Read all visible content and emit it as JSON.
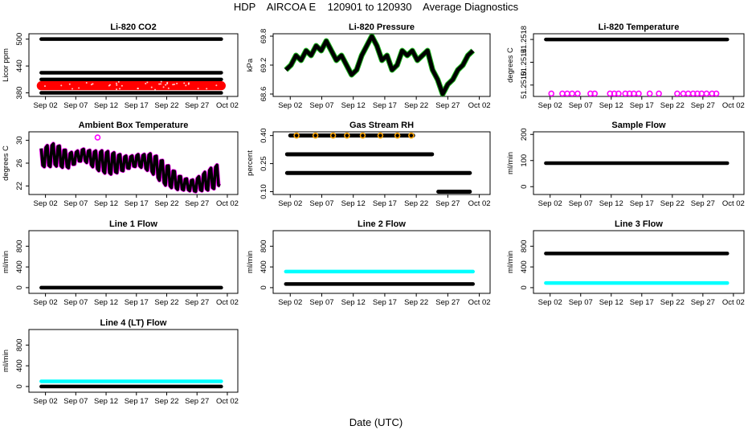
{
  "page": {
    "title": "HDP    AIRCOA E    120901 to 120930    Average Diagnostics",
    "x_label": "Date (UTC)"
  },
  "colors": {
    "black": "#000000",
    "red": "#ff0000",
    "green": "#22bb22",
    "magenta": "#ff00ff",
    "orange": "#ffa500",
    "cyan": "#00ffff",
    "blue": "#0000ff"
  },
  "chart_data": [
    {
      "type": "scatter",
      "title": "Li-820 CO2",
      "ylabel": "Licor ppm",
      "ylim": [
        372,
        512
      ],
      "yticks": [
        "380",
        "440",
        "500"
      ],
      "ytick_values": [
        380,
        440,
        500
      ],
      "xlabels": [
        "Sep 02",
        "Sep 07",
        "Sep 12",
        "Sep 17",
        "Sep 22",
        "Sep 27",
        "Oct 02"
      ],
      "series": [
        {
          "name": "level-500",
          "color": "black",
          "kind": "flat",
          "values": [
            500
          ],
          "spread": 1.2
        },
        {
          "name": "level-425",
          "color": "black",
          "kind": "flat",
          "values": [
            425
          ],
          "spread": 1.0
        },
        {
          "name": "level-410",
          "color": "black",
          "kind": "flat",
          "values": [
            410
          ],
          "spread": 1.0
        },
        {
          "name": "ambient",
          "color": "red",
          "kind": "band",
          "values": [
            396
          ],
          "spread": 10
        },
        {
          "name": "level-380",
          "color": "black",
          "kind": "flat",
          "values": [
            380
          ],
          "spread": 1.2
        }
      ]
    },
    {
      "type": "scatter",
      "title": "Li-820 Pressure",
      "ylabel": "kPa",
      "ylim": [
        68.55,
        69.85
      ],
      "yticks": [
        "68.6",
        "69.2",
        "69.8"
      ],
      "ytick_values": [
        68.6,
        69.2,
        69.8
      ],
      "xlabels": [
        "Sep 02",
        "Sep 07",
        "Sep 12",
        "Sep 17",
        "Sep 22",
        "Sep 27",
        "Oct 02"
      ],
      "series": [
        {
          "name": "pressure",
          "color": "black",
          "kind": "trace",
          "values": [
            69.1,
            69.2,
            69.4,
            69.3,
            69.5,
            69.4,
            69.6,
            69.5,
            69.7,
            69.5,
            69.3,
            69.4,
            69.2,
            69.0,
            69.1,
            69.4,
            69.6,
            69.8,
            69.6,
            69.3,
            69.4,
            69.1,
            69.2,
            69.5,
            69.4,
            69.5,
            69.3,
            69.4,
            69.5,
            69.1,
            68.9,
            68.6,
            68.8,
            68.9,
            69.1,
            69.2,
            69.4,
            69.5
          ],
          "spread": 0.06
        }
      ]
    },
    {
      "type": "scatter",
      "title": "Li-820 Temperature",
      "ylabel": "degrees C",
      "ylim": [
        51.2508,
        51.2519
      ],
      "yticks": [
        "51.2510",
        "51.2514",
        "51.2518"
      ],
      "ytick_values": [
        51.251,
        51.2514,
        51.2518
      ],
      "xlabels": [
        "Sep 02",
        "Sep 07",
        "Sep 12",
        "Sep 17",
        "Sep 22",
        "Sep 27",
        "Oct 02"
      ],
      "series": [
        {
          "name": "temperature",
          "color": "black",
          "kind": "flat",
          "values": [
            51.2518
          ],
          "spread": 1e-05
        },
        {
          "name": "low-readings",
          "color": "magenta",
          "kind": "points",
          "values": [
            51.25085
          ],
          "days": [
            1.2,
            3.0,
            3.8,
            4.6,
            5.5,
            7.6,
            8.3,
            10.8,
            11.5,
            12.2,
            13.3,
            14.0,
            14.7,
            15.5,
            17.3,
            18.8,
            21.8,
            22.8,
            23.6,
            24.4,
            25.1,
            25.8,
            26.6,
            27.5,
            28.2
          ]
        }
      ]
    },
    {
      "type": "scatter",
      "title": "Ambient Box Temperature",
      "ylabel": "degrees C",
      "ylim": [
        20.5,
        31.5
      ],
      "yticks": [
        "22",
        "26",
        "30"
      ],
      "ytick_values": [
        22,
        26,
        30
      ],
      "xlabels": [
        "Sep 02",
        "Sep 07",
        "Sep 12",
        "Sep 17",
        "Sep 22",
        "Sep 27",
        "Oct 02"
      ],
      "series": [
        {
          "name": "box-temp",
          "color": "black",
          "kind": "osc",
          "values": [
            27.0,
            27.5,
            26.5,
            27.5,
            26.5,
            26.0,
            26.0,
            26.5,
            26.0,
            24.0,
            22.5,
            22.0,
            23.0,
            24.0
          ],
          "spread": 2.6
        },
        {
          "name": "box-temp-high",
          "color": "magenta",
          "kind": "points",
          "values": [
            30.5
          ],
          "days": [
            9.6
          ]
        }
      ]
    },
    {
      "type": "scatter",
      "title": "Gas Stream RH",
      "ylabel": "percent",
      "ylim": [
        0.085,
        0.42
      ],
      "yticks": [
        "0.10",
        "0.25",
        "0.40"
      ],
      "ytick_values": [
        0.1,
        0.25,
        0.4
      ],
      "xlabels": [
        "Sep 02",
        "Sep 07",
        "Sep 12",
        "Sep 17",
        "Sep 22",
        "Sep 27",
        "Oct 02"
      ],
      "series": [
        {
          "name": "rh-0.40",
          "color": "black",
          "kind": "seg",
          "values": [
            0.4
          ],
          "from_day": 1.0,
          "to_day": 20.5
        },
        {
          "name": "rh-0.30",
          "color": "black",
          "kind": "seg",
          "values": [
            0.3
          ],
          "from_day": 0.5,
          "to_day": 23.5
        },
        {
          "name": "rh-0.20",
          "color": "black",
          "kind": "seg",
          "values": [
            0.2
          ],
          "from_day": 0.5,
          "to_day": 29.5
        },
        {
          "name": "rh-0.10",
          "color": "black",
          "kind": "seg",
          "values": [
            0.1
          ],
          "from_day": 24.5,
          "to_day": 29.5
        },
        {
          "name": "rh-orange",
          "color": "orange",
          "kind": "points",
          "values": [
            0.4
          ],
          "days": [
            2.0,
            5.0,
            7.8,
            10.0,
            12.5,
            15.3,
            18.0,
            20.2
          ]
        }
      ]
    },
    {
      "type": "scatter",
      "title": "Sample Flow",
      "ylabel": "ml/min",
      "ylim": [
        -30,
        210
      ],
      "yticks": [
        "0",
        "100",
        "200"
      ],
      "ytick_values": [
        0,
        100,
        200
      ],
      "xlabels": [
        "Sep 02",
        "Sep 07",
        "Sep 12",
        "Sep 17",
        "Sep 22",
        "Sep 27",
        "Oct 02"
      ],
      "series": [
        {
          "name": "sample-flow",
          "color": "black",
          "kind": "flat",
          "values": [
            90
          ],
          "spread": 3
        }
      ]
    },
    {
      "type": "scatter",
      "title": "Line 1 Flow",
      "ylabel": "ml/min",
      "ylim": [
        -110,
        1100
      ],
      "yticks": [
        "0",
        "400",
        "800"
      ],
      "ytick_values": [
        0,
        400,
        800
      ],
      "xlabels": [
        "Sep 02",
        "Sep 07",
        "Sep 12",
        "Sep 17",
        "Sep 22",
        "Sep 27",
        "Oct 02"
      ],
      "series": [
        {
          "name": "line1",
          "color": "black",
          "kind": "flat",
          "values": [
            0
          ],
          "spread": 3
        }
      ]
    },
    {
      "type": "scatter",
      "title": "Line 2 Flow",
      "ylabel": "ml/min",
      "ylim": [
        -110,
        1100
      ],
      "yticks": [
        "0",
        "400",
        "800"
      ],
      "ytick_values": [
        0,
        400,
        800
      ],
      "xlabels": [
        "Sep 02",
        "Sep 07",
        "Sep 12",
        "Sep 17",
        "Sep 22",
        "Sep 27",
        "Oct 02"
      ],
      "series": [
        {
          "name": "line2-cyan",
          "color": "cyan",
          "kind": "flat",
          "values": [
            310
          ],
          "spread": 18
        },
        {
          "name": "line2-black",
          "color": "black",
          "kind": "flat",
          "values": [
            70
          ],
          "spread": 6
        }
      ]
    },
    {
      "type": "scatter",
      "title": "Line 3 Flow",
      "ylabel": "ml/min",
      "ylim": [
        -110,
        1100
      ],
      "yticks": [
        "0",
        "400",
        "800"
      ],
      "ytick_values": [
        0,
        400,
        800
      ],
      "xlabels": [
        "Sep 02",
        "Sep 07",
        "Sep 12",
        "Sep 17",
        "Sep 22",
        "Sep 27",
        "Oct 02"
      ],
      "series": [
        {
          "name": "line3-black",
          "color": "black",
          "kind": "flat",
          "values": [
            660
          ],
          "spread": 10
        },
        {
          "name": "line3-cyan",
          "color": "cyan",
          "kind": "flat",
          "values": [
            90
          ],
          "spread": 8
        }
      ]
    },
    {
      "type": "scatter",
      "title": "Line 4 (LT) Flow",
      "ylabel": "ml/min",
      "ylim": [
        -110,
        1100
      ],
      "yticks": [
        "0",
        "400",
        "800"
      ],
      "ytick_values": [
        0,
        400,
        800
      ],
      "xlabels": [
        "Sep 02",
        "Sep 07",
        "Sep 12",
        "Sep 17",
        "Sep 22",
        "Sep 27",
        "Oct 02"
      ],
      "series": [
        {
          "name": "line4-cyan",
          "color": "cyan",
          "kind": "flat",
          "values": [
            100
          ],
          "spread": 8
        },
        {
          "name": "line4-black",
          "color": "black",
          "kind": "flat",
          "values": [
            0
          ],
          "spread": 4
        }
      ]
    }
  ]
}
